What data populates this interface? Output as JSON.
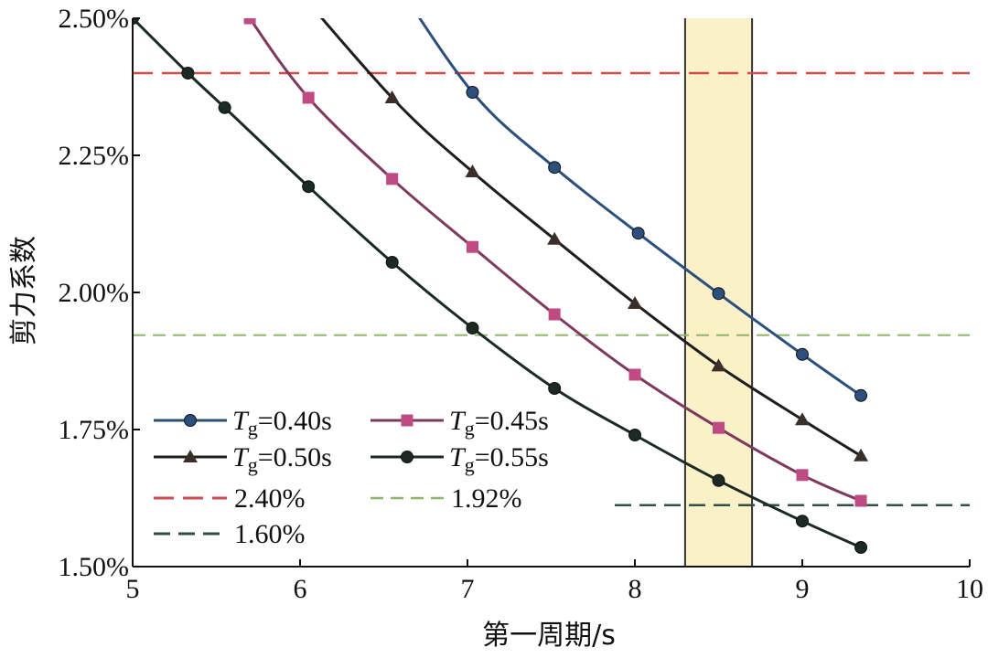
{
  "chart_data": {
    "type": "line",
    "title": "",
    "xlabel": "第一周期/s",
    "ylabel": "剪力系数",
    "xlim": [
      5,
      10
    ],
    "ylim": [
      1.5,
      2.5
    ],
    "x_ticks": [
      5,
      6,
      7,
      8,
      9,
      10
    ],
    "y_ticks": [
      1.5,
      1.75,
      2.0,
      2.25,
      2.5
    ],
    "x_tick_labels": [
      "5",
      "6",
      "7",
      "8",
      "9",
      "10"
    ],
    "y_tick_labels": [
      "1.50%",
      "1.75%",
      "2.00%",
      "2.25%",
      "2.50%"
    ],
    "grid": false,
    "legend_position": "lower-left",
    "highlight_band": {
      "x_from": 8.3,
      "x_to": 8.7,
      "color": "#fbf1c9",
      "edge_color": "#333333"
    },
    "series": [
      {
        "name": "Tg=0.40s",
        "legend_label": {
          "symbol": "T",
          "sub": "g",
          "rest": "=0.40s"
        },
        "color": "#2c4f7c",
        "marker": "circle",
        "points": [
          [
            6.5,
            2.6
          ],
          [
            7.03,
            2.365
          ],
          [
            7.52,
            2.228
          ],
          [
            8.02,
            2.108
          ],
          [
            8.5,
            1.998
          ],
          [
            9.0,
            1.887
          ],
          [
            9.35,
            1.812
          ]
        ]
      },
      {
        "name": "Tg=0.45s",
        "legend_label": {
          "symbol": "T",
          "sub": "g",
          "rest": "=0.45s"
        },
        "color": "#7d3a5e",
        "marker_color": "#c04a82",
        "marker": "square",
        "points": [
          [
            5.5,
            2.6
          ],
          [
            5.7,
            2.5
          ],
          [
            6.05,
            2.355
          ],
          [
            6.55,
            2.207
          ],
          [
            7.03,
            2.083
          ],
          [
            7.52,
            1.96
          ],
          [
            8.0,
            1.85
          ],
          [
            8.5,
            1.753
          ],
          [
            9.0,
            1.667
          ],
          [
            9.35,
            1.62
          ]
        ]
      },
      {
        "name": "Tg=0.50s",
        "legend_label": {
          "symbol": "T",
          "sub": "g",
          "rest": "=0.50s"
        },
        "color": "#1e1e1e",
        "marker_color": "#3b2f2a",
        "marker": "triangle",
        "points": [
          [
            5.85,
            2.6
          ],
          [
            6.55,
            2.355
          ],
          [
            7.03,
            2.22
          ],
          [
            7.52,
            2.097
          ],
          [
            8.0,
            1.98
          ],
          [
            8.5,
            1.866
          ],
          [
            9.0,
            1.768
          ],
          [
            9.35,
            1.702
          ]
        ]
      },
      {
        "name": "Tg=0.55s",
        "legend_label": {
          "symbol": "T",
          "sub": "g",
          "rest": "=0.55s"
        },
        "color": "#1b2a22",
        "marker": "circle",
        "points": [
          [
            5.0,
            2.5
          ],
          [
            5.33,
            2.4
          ],
          [
            5.55,
            2.337
          ],
          [
            6.05,
            2.193
          ],
          [
            6.55,
            2.055
          ],
          [
            7.03,
            1.935
          ],
          [
            7.52,
            1.825
          ],
          [
            8.0,
            1.74
          ],
          [
            8.5,
            1.657
          ],
          [
            9.0,
            1.583
          ],
          [
            9.35,
            1.535
          ]
        ]
      }
    ],
    "reference_lines": [
      {
        "name": "2.40%",
        "y": 2.4,
        "x_from": 5.0,
        "x_to": 10.0,
        "color": "#cf4a4a",
        "dash": "22,10",
        "width": 2.5
      },
      {
        "name": "1.92%",
        "y": 1.922,
        "x_from": 5.0,
        "x_to": 10.0,
        "color": "#8fb56a",
        "dash": "14,8",
        "width": 2
      },
      {
        "name": "1.60%",
        "y": 1.612,
        "x_from": 7.88,
        "x_to": 10.0,
        "color": "#2f4f4a",
        "dash": "18,9",
        "width": 2.5
      }
    ]
  }
}
